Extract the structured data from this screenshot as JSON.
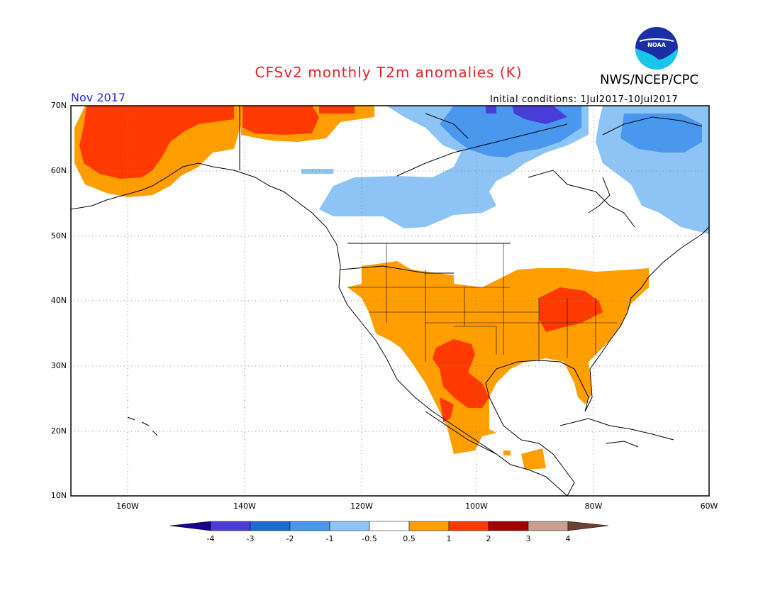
{
  "title": "CFSv2 monthly T2m anomalies (K)",
  "agency": "NWS/NCEP/CPC",
  "logo_text": "NOAA",
  "month_label": "Nov 2017",
  "initial_conditions": "Initial conditions: 1Jul2017-10Jul2017",
  "map": {
    "projection": "cylindrical equidistant",
    "lon_range": [
      -170,
      -60
    ],
    "lat_range": [
      10,
      70
    ],
    "lat_ticks": [
      "70N",
      "60N",
      "50N",
      "40N",
      "30N",
      "20N",
      "10N"
    ],
    "lon_ticks": [
      "160W",
      "140W",
      "120W",
      "100W",
      "80W",
      "60W"
    ],
    "gridlines": "dotted",
    "anomaly_regions": [
      {
        "name": "Alaska / Chukchi",
        "category": "1 to 2",
        "color": "#ff3a00"
      },
      {
        "name": "Alaska fringe / NW Canada",
        "category": "0.5 to 1",
        "color": "#ff9e00"
      },
      {
        "name": "Northern Canada Arctic",
        "category": "1 to 2",
        "color": "#ff3a00"
      },
      {
        "name": "Hudson Bay region",
        "category": "-1 to -0.5",
        "color": "#8ec4f5"
      },
      {
        "name": "Central Canadian Arctic",
        "category": "-2 to -1",
        "color": "#4a97ee"
      },
      {
        "name": "Foxe Basin",
        "category": "-4 to -3",
        "color": "#4a3cd6"
      },
      {
        "name": "Labrador / Quebec",
        "category": "-1 to -0.5",
        "color": "#8ec4f5"
      },
      {
        "name": "Contiguous US",
        "category": "0.5 to 1",
        "color": "#ff9e00"
      },
      {
        "name": "Ohio Valley / Appalachians",
        "category": "1 to 2",
        "color": "#ff3a00"
      },
      {
        "name": "Texas / N. Mexico",
        "category": "1 to 2",
        "color": "#ff3a00"
      },
      {
        "name": "Mexico",
        "category": "0.5 to 1",
        "color": "#ff9e00"
      },
      {
        "name": "Central America",
        "category": "0.5 to 1",
        "color": "#ff9e00"
      }
    ]
  },
  "colorbar": {
    "labels": [
      "-4",
      "-3",
      "-2",
      "-1",
      "-0.5",
      "0.5",
      "1",
      "2",
      "3",
      "4"
    ],
    "colors": [
      "#1c0089",
      "#4a3cd6",
      "#1f6bd3",
      "#4a97ee",
      "#8ec4f5",
      "#ffffff",
      "#ff9e00",
      "#ff3a00",
      "#a20000",
      "#c9a08d",
      "#6e4233"
    ]
  }
}
